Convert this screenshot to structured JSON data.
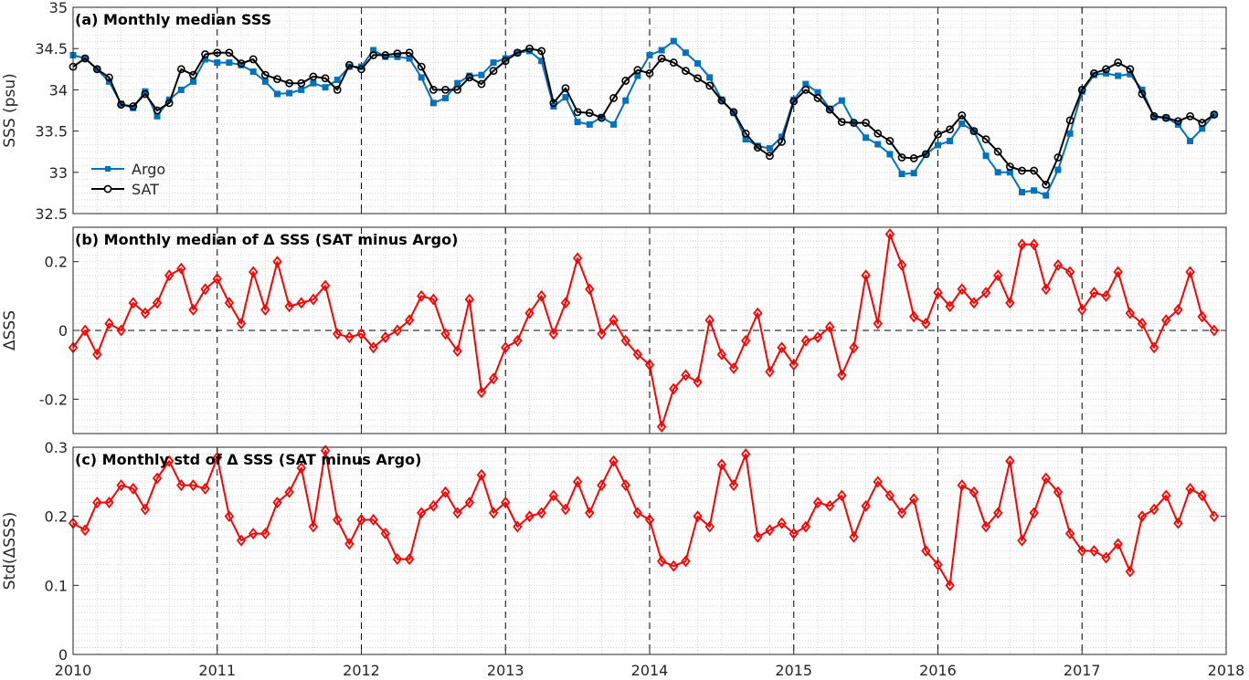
{
  "chart_data": [
    {
      "type": "line",
      "title": "(a) Monthly median SSS",
      "ylabel": "SSS (psu)",
      "xlabel": "",
      "xlim": [
        2010,
        2018
      ],
      "ylim": [
        32.5,
        35
      ],
      "xticks": [
        "2010",
        "2011",
        "2012",
        "2013",
        "2014",
        "2015",
        "2016",
        "2017",
        "2018"
      ],
      "yticks": [
        "32.5",
        "33",
        "33.5",
        "34",
        "34.5",
        "35"
      ],
      "grid": "on (minor dotted)",
      "legend": "left",
      "zero_line": false,
      "start_year": 2010,
      "series": [
        {
          "name": "Argo",
          "color": "#0072BD",
          "marker": "square",
          "values": [
            34.42,
            34.38,
            34.25,
            34.1,
            33.83,
            33.78,
            33.98,
            33.68,
            33.88,
            34.0,
            34.1,
            34.37,
            34.33,
            34.33,
            34.3,
            34.22,
            34.1,
            33.95,
            33.96,
            34.0,
            34.08,
            34.03,
            34.12,
            34.28,
            34.28,
            34.48,
            34.4,
            34.4,
            34.38,
            34.15,
            33.84,
            33.9,
            34.08,
            34.17,
            34.18,
            34.33,
            34.38,
            34.45,
            34.47,
            34.35,
            33.8,
            33.91,
            33.61,
            33.58,
            33.67,
            33.58,
            33.87,
            34.17,
            34.42,
            34.48,
            34.59,
            34.45,
            34.32,
            34.15,
            33.88,
            33.72,
            33.4,
            33.32,
            33.29,
            33.43,
            33.88,
            34.07,
            33.97,
            33.77,
            33.87,
            33.6,
            33.42,
            33.34,
            33.22,
            32.98,
            32.99,
            33.22,
            33.33,
            33.38,
            33.59,
            33.5,
            33.2,
            33.0,
            33.0,
            32.76,
            32.78,
            32.72,
            33.03,
            33.47,
            33.98,
            34.18,
            34.2,
            34.17,
            34.19,
            34.0,
            33.67,
            33.66,
            33.58,
            33.38,
            33.53,
            33.7
          ]
        },
        {
          "name": "SAT",
          "color": "#000000",
          "marker": "circle",
          "values": [
            34.28,
            34.38,
            34.25,
            34.15,
            33.82,
            33.8,
            33.95,
            33.75,
            33.84,
            34.25,
            34.18,
            34.43,
            34.45,
            34.45,
            34.32,
            34.37,
            34.18,
            34.13,
            34.08,
            34.08,
            34.16,
            34.14,
            34.0,
            34.3,
            34.25,
            34.42,
            34.42,
            34.44,
            34.45,
            34.28,
            34.0,
            34.0,
            34.0,
            34.15,
            34.07,
            34.23,
            34.35,
            34.45,
            34.5,
            34.47,
            33.84,
            34.02,
            33.73,
            33.72,
            33.66,
            33.9,
            34.11,
            34.24,
            34.2,
            34.38,
            34.33,
            34.23,
            34.14,
            34.05,
            33.87,
            33.73,
            33.47,
            33.3,
            33.2,
            33.37,
            33.86,
            34.0,
            33.9,
            33.76,
            33.61,
            33.6,
            33.6,
            33.47,
            33.38,
            33.18,
            33.17,
            33.22,
            33.46,
            33.52,
            33.69,
            33.5,
            33.4,
            33.25,
            33.07,
            33.02,
            33.02,
            32.85,
            33.18,
            33.63,
            34.0,
            34.2,
            34.25,
            34.33,
            34.25,
            33.95,
            33.68,
            33.66,
            33.62,
            33.68,
            33.6,
            33.7
          ]
        }
      ]
    },
    {
      "type": "line",
      "title": "(b) Monthly median of Δ SSS (SAT minus Argo)",
      "ylabel": "ΔSSS",
      "xlabel": "",
      "xlim": [
        2010,
        2018
      ],
      "ylim": [
        -0.3,
        0.3
      ],
      "xticks": [
        "2010",
        "2011",
        "2012",
        "2013",
        "2014",
        "2015",
        "2016",
        "2017",
        "2018"
      ],
      "yticks": [
        "-0.2",
        "0",
        "0.2"
      ],
      "grid": "on (minor dotted)",
      "zero_line": true,
      "start_year": 2010,
      "series": [
        {
          "color": "#FF0000",
          "marker": "diamond",
          "values": [
            -0.05,
            0.0,
            -0.07,
            0.02,
            0.0,
            0.08,
            0.05,
            0.08,
            0.16,
            0.18,
            0.06,
            0.12,
            0.15,
            0.08,
            0.02,
            0.17,
            0.06,
            0.2,
            0.07,
            0.08,
            0.09,
            0.13,
            -0.01,
            -0.02,
            -0.01,
            -0.05,
            -0.02,
            0.0,
            0.03,
            0.1,
            0.09,
            -0.01,
            -0.06,
            0.09,
            -0.18,
            -0.14,
            -0.05,
            -0.03,
            0.05,
            0.1,
            -0.01,
            0.08,
            0.21,
            0.12,
            -0.01,
            0.03,
            -0.03,
            -0.07,
            -0.1,
            -0.28,
            -0.17,
            -0.13,
            -0.15,
            0.03,
            -0.07,
            -0.11,
            -0.03,
            0.05,
            -0.12,
            -0.05,
            -0.1,
            -0.03,
            -0.02,
            0.01,
            -0.13,
            -0.05,
            0.16,
            0.02,
            0.28,
            0.19,
            0.04,
            0.02,
            0.11,
            0.07,
            0.12,
            0.08,
            0.11,
            0.16,
            0.08,
            0.25,
            0.25,
            0.12,
            0.19,
            0.17,
            0.06,
            0.11,
            0.1,
            0.17,
            0.05,
            0.02,
            -0.05,
            0.03,
            0.06,
            0.17,
            0.04,
            0.0
          ]
        }
      ]
    },
    {
      "type": "line",
      "title": "(c) Monthly std of Δ SSS (SAT minus Argo)",
      "ylabel": "Std(ΔSSS)",
      "xlabel": "",
      "xlim": [
        2010,
        2018
      ],
      "ylim": [
        0,
        0.3
      ],
      "xticks": [
        "2010",
        "2011",
        "2012",
        "2013",
        "2014",
        "2015",
        "2016",
        "2017",
        "2018"
      ],
      "yticks": [
        "0",
        "0.1",
        "0.2",
        "0.3"
      ],
      "grid": "on (minor dotted)",
      "zero_line": false,
      "start_year": 2010,
      "series": [
        {
          "color": "#FF0000",
          "marker": "diamond",
          "values": [
            0.19,
            0.18,
            0.22,
            0.22,
            0.245,
            0.24,
            0.21,
            0.255,
            0.28,
            0.245,
            0.245,
            0.24,
            0.285,
            0.2,
            0.165,
            0.175,
            0.175,
            0.22,
            0.235,
            0.27,
            0.185,
            0.295,
            0.195,
            0.16,
            0.195,
            0.195,
            0.175,
            0.138,
            0.138,
            0.205,
            0.215,
            0.235,
            0.205,
            0.22,
            0.26,
            0.205,
            0.22,
            0.185,
            0.2,
            0.205,
            0.23,
            0.21,
            0.25,
            0.205,
            0.245,
            0.28,
            0.245,
            0.205,
            0.195,
            0.135,
            0.128,
            0.135,
            0.2,
            0.185,
            0.275,
            0.245,
            0.29,
            0.17,
            0.18,
            0.19,
            0.175,
            0.185,
            0.22,
            0.215,
            0.23,
            0.17,
            0.215,
            0.25,
            0.23,
            0.205,
            0.225,
            0.15,
            0.13,
            0.1,
            0.245,
            0.235,
            0.185,
            0.205,
            0.28,
            0.165,
            0.205,
            0.255,
            0.235,
            0.175,
            0.15,
            0.15,
            0.14,
            0.16,
            0.12,
            0.2,
            0.21,
            0.23,
            0.19,
            0.24,
            0.23,
            0.2
          ]
        }
      ]
    }
  ]
}
